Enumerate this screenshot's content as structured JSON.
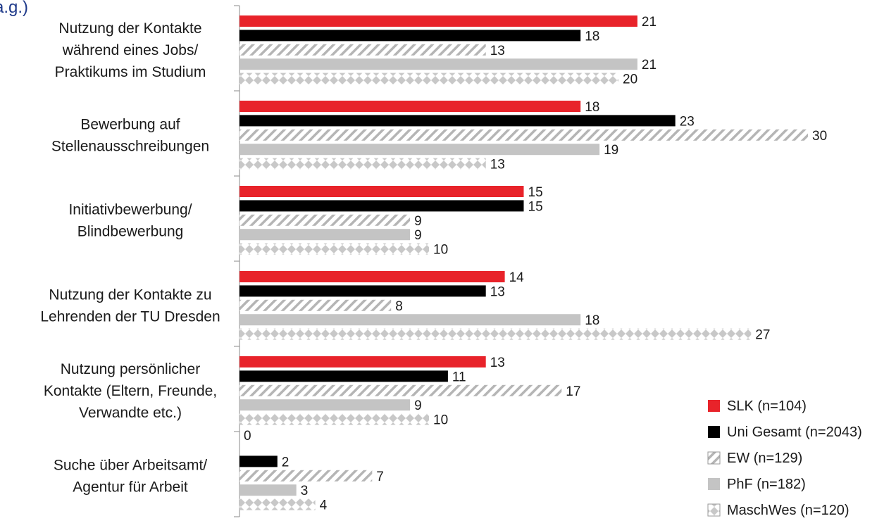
{
  "header_fragment": "a.g.)",
  "chart_data": {
    "type": "bar",
    "orientation": "horizontal",
    "title": "",
    "xlabel": "",
    "ylabel": "",
    "xlim": [
      0,
      31
    ],
    "grid": false,
    "legend_position": "bottom-right",
    "categories": [
      [
        "Nutzung der Kontakte",
        "während eines Jobs/",
        "Praktikums im Studium"
      ],
      [
        "Bewerbung auf",
        "Stellenausschreibungen"
      ],
      [
        "Initiativbewerbung/",
        "Blindbewerbung"
      ],
      [
        "Nutzung der Kontakte zu",
        "Lehrenden der TU Dresden"
      ],
      [
        "Nutzung persönlicher",
        "Kontakte (Eltern, Freunde,",
        "Verwandte etc.)"
      ],
      [
        "Suche über Arbeitsamt/",
        "Agentur für Arbeit"
      ]
    ],
    "series": [
      {
        "name": "SLK (n=104)",
        "color": "#e8232a",
        "pattern": "solid",
        "values": [
          21,
          18,
          15,
          14,
          13,
          0
        ]
      },
      {
        "name": "Uni Gesamt (n=2043)",
        "color": "#000000",
        "pattern": "solid",
        "values": [
          18,
          23,
          15,
          13,
          11,
          2
        ]
      },
      {
        "name": "EW (n=129)",
        "color": "#b8b8b8",
        "pattern": "diagonal-hatch",
        "values": [
          13,
          30,
          9,
          8,
          17,
          7
        ]
      },
      {
        "name": "PhF (n=182)",
        "color": "#c4c4c4",
        "pattern": "solid",
        "values": [
          21,
          19,
          9,
          18,
          9,
          3
        ]
      },
      {
        "name": "MaschWes (n=120)",
        "color": "#c8c8c8",
        "pattern": "diamond",
        "values": [
          20,
          13,
          10,
          27,
          10,
          4
        ]
      }
    ]
  }
}
